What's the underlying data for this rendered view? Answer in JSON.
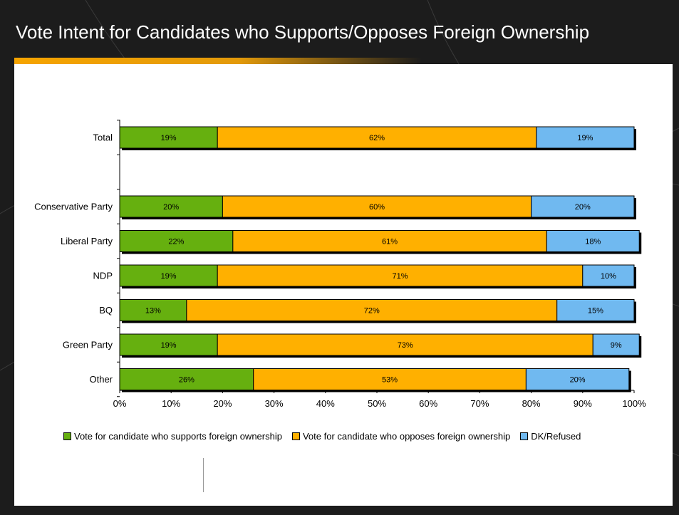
{
  "slide": {
    "title": "Vote Intent for Candidates who Supports/Opposes Foreign Ownership"
  },
  "colors": {
    "background": "#1c1c1c",
    "accent": "#f6a400",
    "panel": "#ffffff"
  },
  "chart_data": {
    "type": "bar",
    "orientation": "horizontal",
    "stacked": true,
    "categories": [
      "Total",
      "",
      "Conservative Party",
      "Liberal Party",
      "NDP",
      "BQ",
      "Green Party",
      "Other"
    ],
    "series": [
      {
        "name": "Vote for candidate who supports foreign ownership",
        "color": "#66b00f",
        "values": [
          19,
          null,
          20,
          22,
          19,
          13,
          19,
          26
        ],
        "labels": [
          "19%",
          "",
          "20%",
          "22%",
          "19%",
          "13%",
          "19%",
          "26%"
        ]
      },
      {
        "name": "Vote for candidate who opposes foreign ownership",
        "color": "#ffb000",
        "values": [
          62,
          null,
          60,
          61,
          71,
          72,
          73,
          53
        ],
        "labels": [
          "62%",
          "",
          "60%",
          "61%",
          "71%",
          "72%",
          "73%",
          "53%"
        ]
      },
      {
        "name": "DK/Refused",
        "color": "#70b9f0",
        "values": [
          19,
          null,
          20,
          18,
          10,
          15,
          9,
          20
        ],
        "labels": [
          "19%",
          "",
          "20%",
          "18%",
          "10%",
          "15%",
          "9%",
          "20%"
        ]
      }
    ],
    "xlim": [
      0,
      100
    ],
    "xticks": [
      "0%",
      "10%",
      "20%",
      "30%",
      "40%",
      "50%",
      "60%",
      "70%",
      "80%",
      "90%",
      "100%"
    ],
    "legend_position": "bottom",
    "grid": false
  }
}
